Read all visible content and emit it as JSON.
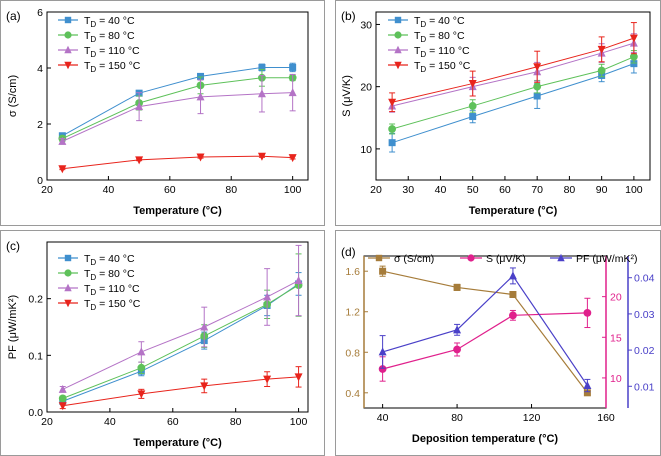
{
  "chart_data": [
    {
      "type": "line",
      "panel_label": "(a)",
      "xlabel": "Temperature (°C)",
      "ylabel": "σ (S/cm)",
      "xlim": [
        20,
        105
      ],
      "ylim": [
        0,
        6
      ],
      "xticks": [
        "20",
        "40",
        "60",
        "80",
        "100"
      ],
      "yticks": [
        "0",
        "2",
        "4",
        "6"
      ],
      "x": [
        25,
        50,
        70,
        90,
        100
      ],
      "series": [
        {
          "name": "T_D = 40 °C",
          "label_main": "T",
          "label_sub": "D",
          "label_rest": " = 40 °C",
          "color": "#3f8fce",
          "marker": "square",
          "values": [
            1.58,
            3.1,
            3.7,
            4.02,
            4.02
          ],
          "errors": [
            0.1,
            0.1,
            0.08,
            0.12,
            0.15
          ]
        },
        {
          "name": "T_D = 80 °C",
          "label_main": "T",
          "label_sub": "D",
          "label_rest": " = 80 °C",
          "color": "#5ec15a",
          "marker": "circle",
          "values": [
            1.48,
            2.75,
            3.38,
            3.65,
            3.65
          ],
          "errors": [
            0.1,
            0.25,
            0.3,
            0.3,
            0.1
          ]
        },
        {
          "name": "T_D = 110 °C",
          "label_main": "T",
          "label_sub": "D",
          "label_rest": " = 110 °C",
          "color": "#b473c6",
          "marker": "triangle-up",
          "values": [
            1.38,
            2.62,
            2.97,
            3.08,
            3.12
          ],
          "errors": [
            0.1,
            0.5,
            0.6,
            0.65,
            0.65
          ]
        },
        {
          "name": "T_D = 150 °C",
          "label_main": "T",
          "label_sub": "D",
          "label_rest": " = 150 °C",
          "color": "#e8241c",
          "marker": "triangle-down",
          "values": [
            0.4,
            0.72,
            0.82,
            0.85,
            0.8
          ],
          "errors": [
            0.03,
            0.03,
            0.04,
            0.04,
            0.05
          ]
        }
      ]
    },
    {
      "type": "line",
      "panel_label": "(b)",
      "xlabel": "Temperature (°C)",
      "ylabel": "S (μV/K)",
      "xlim": [
        20,
        105
      ],
      "ylim": [
        5,
        32
      ],
      "xticks": [
        "20",
        "30",
        "40",
        "50",
        "60",
        "70",
        "80",
        "90",
        "100"
      ],
      "yticks": [
        "10",
        "20",
        "30"
      ],
      "x": [
        25,
        50,
        70,
        90,
        100
      ],
      "series": [
        {
          "name": "T_D = 40 °C",
          "label_main": "T",
          "label_sub": "D",
          "label_rest": " = 40 °C",
          "color": "#3f8fce",
          "marker": "square",
          "values": [
            11,
            15.2,
            18.5,
            21.8,
            23.7
          ],
          "errors": [
            1.5,
            1.0,
            2.0,
            1.0,
            1.5
          ]
        },
        {
          "name": "T_D = 80 °C",
          "label_main": "T",
          "label_sub": "D",
          "label_rest": " = 80 °C",
          "color": "#5ec15a",
          "marker": "circle",
          "values": [
            13.2,
            16.9,
            20.0,
            22.6,
            24.8
          ],
          "errors": [
            0.8,
            1.0,
            1.0,
            1.0,
            1.0
          ]
        },
        {
          "name": "T_D = 110 °C",
          "label_main": "T",
          "label_sub": "D",
          "label_rest": " = 110 °C",
          "color": "#b473c6",
          "marker": "triangle-up",
          "values": [
            16.9,
            20.0,
            22.4,
            25.4,
            27.0
          ],
          "errors": [
            1.0,
            1.5,
            1.5,
            1.5,
            1.5
          ]
        },
        {
          "name": "T_D = 150 °C",
          "label_main": "T",
          "label_sub": "D",
          "label_rest": " = 150 °C",
          "color": "#e8241c",
          "marker": "triangle-down",
          "values": [
            17.5,
            20.5,
            23.2,
            26.0,
            27.8
          ],
          "errors": [
            1.5,
            2.0,
            2.5,
            2.0,
            2.5
          ]
        }
      ]
    },
    {
      "type": "line",
      "panel_label": "(c)",
      "xlabel": "Temperature (°C)",
      "ylabel": "PF (μW/mK²)",
      "xlim": [
        20,
        103
      ],
      "ylim": [
        0,
        0.3
      ],
      "xticks": [
        "20",
        "40",
        "60",
        "80",
        "100"
      ],
      "yticks": [
        "0.0",
        "0.1",
        "0.2"
      ],
      "x": [
        25,
        50,
        70,
        90,
        100
      ],
      "series": [
        {
          "name": "T_D = 40 °C",
          "label_main": "T",
          "label_sub": "D",
          "label_rest": " = 40 °C",
          "color": "#3f8fce",
          "marker": "square",
          "values": [
            0.019,
            0.072,
            0.126,
            0.188,
            0.226
          ],
          "errors": [
            0.004,
            0.008,
            0.015,
            0.018,
            0.02
          ]
        },
        {
          "name": "T_D = 80 °C",
          "label_main": "T",
          "label_sub": "D",
          "label_rest": " = 80 °C",
          "color": "#5ec15a",
          "marker": "circle",
          "values": [
            0.024,
            0.078,
            0.134,
            0.19,
            0.224
          ],
          "errors": [
            0.004,
            0.01,
            0.02,
            0.025,
            0.055
          ]
        },
        {
          "name": "T_D = 110 °C",
          "label_main": "T",
          "label_sub": "D",
          "label_rest": " = 110 °C",
          "color": "#b473c6",
          "marker": "triangle-up",
          "values": [
            0.04,
            0.106,
            0.15,
            0.203,
            0.232
          ],
          "errors": [
            0.005,
            0.018,
            0.035,
            0.05,
            0.062
          ]
        },
        {
          "name": "T_D = 150 °C",
          "label_main": "T",
          "label_sub": "D",
          "label_rest": " = 150 °C",
          "color": "#e8241c",
          "marker": "triangle-down",
          "values": [
            0.011,
            0.032,
            0.046,
            0.058,
            0.062
          ],
          "errors": [
            0.005,
            0.008,
            0.012,
            0.013,
            0.018
          ]
        }
      ]
    },
    {
      "type": "line",
      "panel_label": "(d)",
      "xlabel": "Deposition temperature (°C)",
      "xlim": [
        30,
        160
      ],
      "xticks": [
        "40",
        "80",
        "120",
        "160"
      ],
      "x": [
        40,
        80,
        110,
        150
      ],
      "axes": {
        "left": {
          "ylim": [
            0.25,
            1.75
          ],
          "ticks": [
            "0.4",
            "0.8",
            "1.2",
            "1.6"
          ],
          "color": "#a67c3a"
        },
        "right1": {
          "ylim": [
            6.3,
            25
          ],
          "ticks": [
            "10",
            "15",
            "20"
          ],
          "color": "#e0208c"
        },
        "right2": {
          "ylim": [
            0.004,
            0.046
          ],
          "ticks": [
            "0.01",
            "0.02",
            "0.03",
            "0.04"
          ],
          "color": "#4a40c8"
        }
      },
      "series": [
        {
          "name": "σ (S/cm)",
          "axis": "left",
          "color": "#a67c3a",
          "marker": "square",
          "values": [
            1.6,
            1.44,
            1.37,
            0.4
          ],
          "errors": [
            0.05,
            0.03,
            0.0,
            0.02
          ]
        },
        {
          "name": "S (μV/K)",
          "axis": "right1",
          "color": "#e0208c",
          "marker": "circle",
          "values": [
            11.1,
            13.5,
            17.7,
            18.0
          ],
          "errors": [
            1.5,
            0.8,
            0.6,
            1.8
          ]
        },
        {
          "name": "PF (μW/mK²)",
          "axis": "right2",
          "color": "#4a40c8",
          "marker": "triangle-up",
          "values": [
            0.0195,
            0.0256,
            0.0405,
            0.0102
          ],
          "errors": [
            0.0045,
            0.0015,
            0.0022,
            0.0017
          ]
        }
      ]
    }
  ]
}
